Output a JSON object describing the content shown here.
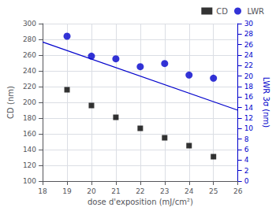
{
  "chart_data": {
    "type": "scatter",
    "xlabel": "dose d'exposition (mJ/cm²)",
    "ylabel": "CD (nm)",
    "y2label": "LWR 3σ (nm)",
    "xlim": [
      18,
      26
    ],
    "xticks": [
      18,
      19,
      20,
      21,
      22,
      23,
      24,
      25,
      26
    ],
    "ylim": [
      100,
      300
    ],
    "yticks": [
      100,
      120,
      140,
      160,
      180,
      200,
      220,
      240,
      260,
      280,
      300
    ],
    "y2lim": [
      0,
      30
    ],
    "y2ticks": [
      0,
      2,
      4,
      6,
      8,
      10,
      12,
      14,
      16,
      18,
      20,
      22,
      24,
      26,
      28,
      30
    ],
    "grid": true,
    "legend": "upper right",
    "series": [
      {
        "name": "CD",
        "type": "scatter",
        "marker": "square",
        "color": "black",
        "x": [
          19,
          20,
          21,
          22,
          23,
          24,
          25
        ],
        "values": [
          216,
          196,
          181,
          167,
          155,
          145,
          131
        ]
      },
      {
        "name": "LWR",
        "type": "scatter",
        "marker": "circle",
        "color": "#0000cc",
        "axis": "y2",
        "x": [
          19,
          20,
          21,
          22,
          23,
          24,
          25
        ],
        "values": [
          27.6,
          23.8,
          23.3,
          21.8,
          22.4,
          20.2,
          19.6
        ]
      },
      {
        "type": "line",
        "color": "#0000cc",
        "axis": "y2",
        "x": [
          18,
          26
        ],
        "values": [
          26.5,
          13.5
        ]
      }
    ]
  }
}
